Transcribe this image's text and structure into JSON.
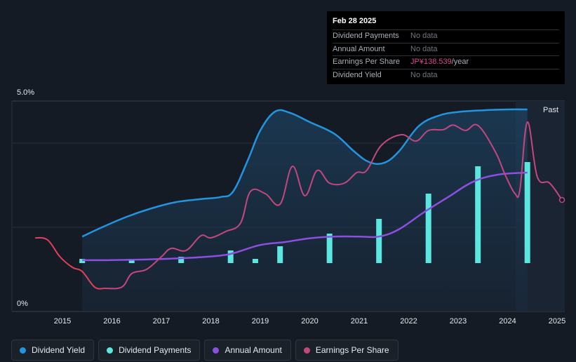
{
  "tooltip": {
    "date": "Feb 28 2025",
    "rows": [
      {
        "label": "Dividend Payments",
        "value": "No data",
        "unit": ""
      },
      {
        "label": "Annual Amount",
        "value": "No data",
        "unit": ""
      },
      {
        "label": "Earnings Per Share",
        "value": "JP¥138.539",
        "unit": "/year"
      },
      {
        "label": "Dividend Yield",
        "value": "No data",
        "unit": ""
      }
    ]
  },
  "legend": [
    {
      "label": "Dividend Yield",
      "color": "#2394df"
    },
    {
      "label": "Dividend Payments",
      "color": "#5ce6e0"
    },
    {
      "label": "Annual Amount",
      "color": "#8c4fe0"
    },
    {
      "label": "Earnings Per Share",
      "color": "#c3477e"
    }
  ],
  "chart_data": {
    "type": "line",
    "ylabel_top": "5.0%",
    "ylabel_bottom": "0%",
    "ylim": [
      0,
      5
    ],
    "xlim": [
      2014.0,
      2025.15
    ],
    "past_label": "Past",
    "x_ticks": [
      "2015",
      "2016",
      "2017",
      "2018",
      "2019",
      "2020",
      "2021",
      "2022",
      "2023",
      "2024",
      "2025"
    ],
    "series": [
      {
        "name": "Dividend Yield",
        "color": "#2394df",
        "points": [
          [
            2015.4,
            1.78
          ],
          [
            2015.8,
            2.0
          ],
          [
            2016.3,
            2.25
          ],
          [
            2016.8,
            2.45
          ],
          [
            2017.3,
            2.6
          ],
          [
            2017.8,
            2.67
          ],
          [
            2018.2,
            2.72
          ],
          [
            2018.45,
            2.85
          ],
          [
            2018.75,
            3.6
          ],
          [
            2019.0,
            4.3
          ],
          [
            2019.3,
            4.75
          ],
          [
            2019.6,
            4.72
          ],
          [
            2020.0,
            4.5
          ],
          [
            2020.5,
            4.22
          ],
          [
            2020.9,
            3.8
          ],
          [
            2021.2,
            3.55
          ],
          [
            2021.5,
            3.53
          ],
          [
            2021.8,
            3.8
          ],
          [
            2022.2,
            4.4
          ],
          [
            2022.6,
            4.65
          ],
          [
            2023.0,
            4.74
          ],
          [
            2023.5,
            4.78
          ],
          [
            2024.0,
            4.8
          ],
          [
            2024.4,
            4.8
          ]
        ]
      },
      {
        "name": "Annual Amount",
        "color": "#8c4fe0",
        "points": [
          [
            2015.4,
            1.22
          ],
          [
            2016.0,
            1.22
          ],
          [
            2016.8,
            1.24
          ],
          [
            2017.5,
            1.27
          ],
          [
            2018.2,
            1.33
          ],
          [
            2018.5,
            1.4
          ],
          [
            2019.0,
            1.58
          ],
          [
            2019.5,
            1.65
          ],
          [
            2020.0,
            1.74
          ],
          [
            2020.5,
            1.78
          ],
          [
            2021.0,
            1.78
          ],
          [
            2021.4,
            1.78
          ],
          [
            2021.8,
            1.95
          ],
          [
            2022.3,
            2.35
          ],
          [
            2022.8,
            2.72
          ],
          [
            2023.3,
            3.08
          ],
          [
            2023.8,
            3.25
          ],
          [
            2024.4,
            3.3
          ]
        ]
      },
      {
        "name": "Earnings Per Share",
        "color": "#c3477e",
        "points": [
          [
            2014.45,
            1.75
          ],
          [
            2014.7,
            1.7
          ],
          [
            2014.95,
            1.3
          ],
          [
            2015.2,
            1.05
          ],
          [
            2015.4,
            0.95
          ],
          [
            2015.65,
            0.58
          ],
          [
            2015.85,
            0.55
          ],
          [
            2016.2,
            0.58
          ],
          [
            2016.4,
            0.9
          ],
          [
            2016.7,
            1.0
          ],
          [
            2017.0,
            1.3
          ],
          [
            2017.2,
            1.5
          ],
          [
            2017.5,
            1.45
          ],
          [
            2017.8,
            1.8
          ],
          [
            2018.0,
            1.75
          ],
          [
            2018.3,
            1.9
          ],
          [
            2018.6,
            2.1
          ],
          [
            2018.8,
            2.85
          ],
          [
            2019.1,
            2.8
          ],
          [
            2019.4,
            2.55
          ],
          [
            2019.65,
            3.45
          ],
          [
            2019.9,
            2.75
          ],
          [
            2020.15,
            3.35
          ],
          [
            2020.4,
            3.05
          ],
          [
            2020.7,
            3.05
          ],
          [
            2020.95,
            3.3
          ],
          [
            2021.15,
            3.35
          ],
          [
            2021.45,
            3.95
          ],
          [
            2021.85,
            4.2
          ],
          [
            2022.15,
            4.05
          ],
          [
            2022.4,
            4.3
          ],
          [
            2022.7,
            4.32
          ],
          [
            2022.9,
            4.43
          ],
          [
            2023.15,
            4.3
          ],
          [
            2023.4,
            4.42
          ],
          [
            2023.75,
            3.8
          ],
          [
            2023.95,
            3.25
          ],
          [
            2024.15,
            2.8
          ],
          [
            2024.25,
            2.9
          ],
          [
            2024.4,
            4.5
          ],
          [
            2024.6,
            3.2
          ],
          [
            2024.85,
            3.05
          ],
          [
            2025.1,
            2.65
          ]
        ]
      }
    ],
    "bars": {
      "name": "Dividend Payments",
      "color": "#5ce6e0",
      "x": [
        2015.4,
        2016.4,
        2017.4,
        2018.4,
        2018.9,
        2019.4,
        2020.4,
        2021.4,
        2022.4,
        2023.4,
        2024.4
      ],
      "top": [
        1.25,
        1.25,
        1.3,
        1.45,
        1.25,
        1.55,
        1.85,
        2.2,
        2.8,
        3.45,
        3.55
      ],
      "bottom": 1.15
    }
  }
}
